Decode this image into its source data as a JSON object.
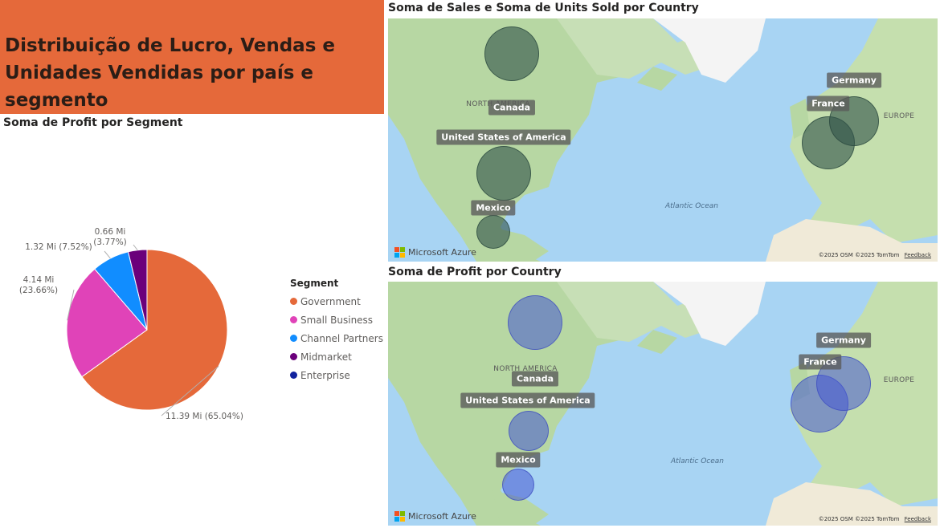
{
  "banner": {
    "title": "Distribuição de Lucro, Vendas e Unidades Vendidas por país e segmento"
  },
  "pie": {
    "title": "Soma de Profit por Segment",
    "legend_title": "Segment"
  },
  "chart_data": [
    {
      "type": "pie",
      "title": "Soma de Profit por Segment",
      "legend_title": "Segment",
      "legend_placement": "right",
      "slices": [
        {
          "name": "Government",
          "value": 11.39,
          "label": "11.39 Mi (65.04%)",
          "color": "#e5693a"
        },
        {
          "name": "Small Business",
          "value": 4.14,
          "label": "4.14 Mi (23.66%)",
          "color": "#e043b8"
        },
        {
          "name": "Channel Partners",
          "value": 1.32,
          "label": "1.32 Mi (7.52%)",
          "color": "#118dff"
        },
        {
          "name": "Midmarket",
          "value": 0.66,
          "label": "0.66 Mi (3.77%)",
          "color": "#6b007b"
        },
        {
          "name": "Enterprise",
          "value": 0,
          "label": "",
          "color": "#12239e"
        }
      ]
    },
    {
      "type": "map-bubble",
      "title": "Soma de Sales e Soma de Units Sold por Country",
      "countries": [
        "Canada",
        "United States of America",
        "Mexico",
        "France",
        "Germany"
      ],
      "bubble_color": "#32544a"
    },
    {
      "type": "map-bubble",
      "title": "Soma de Profit por Country",
      "countries": [
        "Canada",
        "United States of America",
        "Mexico",
        "France",
        "Germany"
      ],
      "bubble_color": "#4658d2"
    }
  ],
  "maps": {
    "map1_title": "Soma de Sales e Soma de Units Sold por Country",
    "map2_title": "Soma de Profit por Country",
    "countries": {
      "canada": "Canada",
      "usa": "United States of America",
      "mexico": "Mexico",
      "france": "France",
      "germany": "Germany"
    },
    "regions": {
      "north_america": "NORTH AMERICA",
      "europe": "EUROPE",
      "atlantic": "Atlantic Ocean"
    },
    "brand": "Microsoft Azure",
    "attribution_osm": "©2025 OSM",
    "attribution_tomtom": "©2025 TomTom",
    "feedback": "Feedback"
  }
}
